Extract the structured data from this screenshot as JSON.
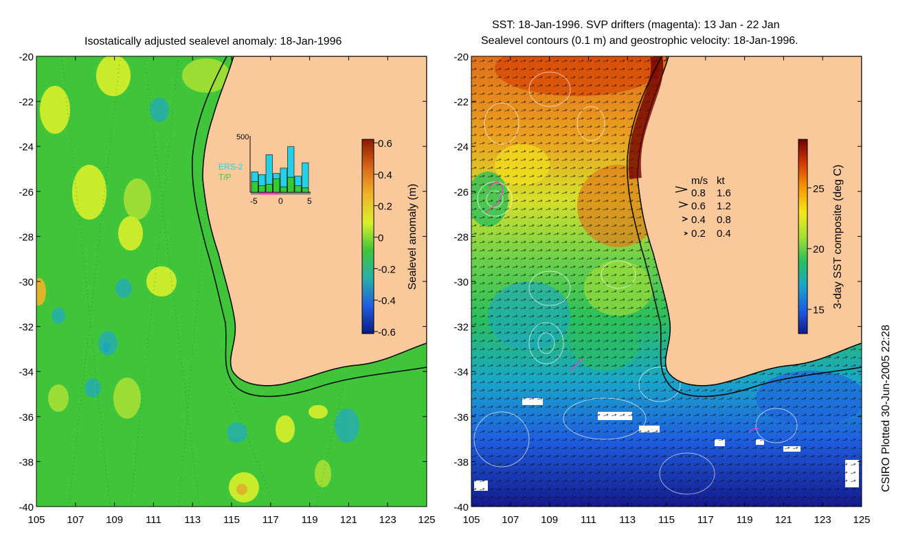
{
  "left_panel": {
    "title": "Isostatically adjusted sealevel anomaly: 18-Jan-1996",
    "colorbar": {
      "label": "Sealevel anomaly (m)",
      "ticks": [
        "0.6",
        "0.4",
        "0.2",
        "0",
        "-0.2",
        "-0.4",
        "-0.6"
      ],
      "colors": [
        "#8b1a00",
        "#d9661a",
        "#f0b429",
        "#d8f02a",
        "#3fc43a",
        "#28b0a8",
        "#1f5fe0",
        "#0a1a80"
      ]
    },
    "histogram": {
      "ymax_label": "500",
      "legend": [
        "ERS-2",
        "T/P"
      ],
      "legend_colors": [
        "#22d0e8",
        "#33cc33"
      ],
      "xticks": [
        "-5",
        "0",
        "5"
      ],
      "ers_values": [
        0.38,
        0.33,
        0.7,
        0.35,
        0.45,
        0.85,
        0.3,
        0.55
      ],
      "tp_values": [
        0.2,
        0.12,
        0.15,
        0.25,
        0.1,
        0.28,
        0.12,
        0.08
      ]
    }
  },
  "right_panel": {
    "title_line1": "SST: 18-Jan-1996. SVP drifters (magenta): 13 Jan - 22 Jan",
    "title_line2": "Sealevel contours (0.1 m) and geostrophic velocity: 18-Jan-1996.",
    "colorbar": {
      "label": "3-day SST composite (deg C)",
      "ticks": [
        "25",
        "20",
        "15"
      ],
      "colors": [
        "#6e0000",
        "#d63a00",
        "#f59a00",
        "#f5e61a",
        "#a6e034",
        "#2cbf5a",
        "#1aa6c8",
        "#1f5fe0",
        "#141a8c"
      ]
    },
    "velocity_legend": {
      "header_ms": "m/s",
      "header_kt": "kt",
      "rows": [
        {
          "ms": "0.8",
          "kt": "1.6"
        },
        {
          "ms": "0.6",
          "kt": "1.2"
        },
        {
          "ms": "0.4",
          "kt": "0.8"
        },
        {
          "ms": "0.2",
          "kt": "0.4"
        }
      ]
    }
  },
  "axes": {
    "lat_ticks": [
      "-20",
      "-22",
      "-24",
      "-26",
      "-28",
      "-30",
      "-32",
      "-34",
      "-36",
      "-38",
      "-40"
    ],
    "lon_ticks": [
      "105",
      "107",
      "109",
      "111",
      "113",
      "115",
      "117",
      "119",
      "121",
      "123",
      "125"
    ]
  },
  "credit": "CSIRO Plotted 30-Jun-2005 22:28",
  "colors": {
    "land": "#f9c99c",
    "coast": "#000000",
    "ocean_mid": "#3fc43a"
  }
}
